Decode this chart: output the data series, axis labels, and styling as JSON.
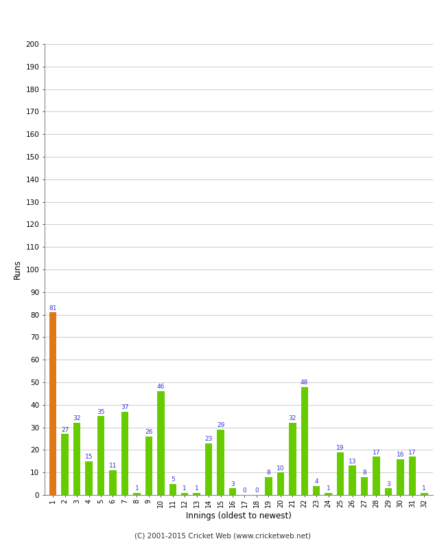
{
  "xlabel": "Innings (oldest to newest)",
  "ylabel": "Runs",
  "ylim": [
    0,
    200
  ],
  "yticks": [
    0,
    10,
    20,
    30,
    40,
    50,
    60,
    70,
    80,
    90,
    100,
    110,
    120,
    130,
    140,
    150,
    160,
    170,
    180,
    190,
    200
  ],
  "innings": [
    1,
    2,
    3,
    4,
    5,
    6,
    7,
    8,
    9,
    10,
    11,
    12,
    13,
    14,
    15,
    16,
    17,
    18,
    19,
    20,
    21,
    22,
    23,
    24,
    25,
    26,
    27,
    28,
    29,
    30,
    31,
    32
  ],
  "values": [
    81,
    27,
    32,
    15,
    35,
    11,
    37,
    1,
    26,
    46,
    5,
    1,
    1,
    23,
    29,
    3,
    0,
    0,
    8,
    10,
    32,
    48,
    4,
    1,
    19,
    13,
    8,
    17,
    3,
    16,
    17,
    1
  ],
  "colors": [
    "#e07818",
    "#66cc00",
    "#66cc00",
    "#66cc00",
    "#66cc00",
    "#66cc00",
    "#66cc00",
    "#66cc00",
    "#66cc00",
    "#66cc00",
    "#66cc00",
    "#66cc00",
    "#66cc00",
    "#66cc00",
    "#66cc00",
    "#66cc00",
    "#66cc00",
    "#66cc00",
    "#66cc00",
    "#66cc00",
    "#66cc00",
    "#66cc00",
    "#66cc00",
    "#66cc00",
    "#66cc00",
    "#66cc00",
    "#66cc00",
    "#66cc00",
    "#66cc00",
    "#66cc00",
    "#66cc00",
    "#66cc00"
  ],
  "label_color": "#3333cc",
  "label_fontsize": 6.5,
  "background_color": "#ffffff",
  "grid_color": "#cccccc",
  "footer": "(C) 2001-2015 Cricket Web (www.cricketweb.net)"
}
